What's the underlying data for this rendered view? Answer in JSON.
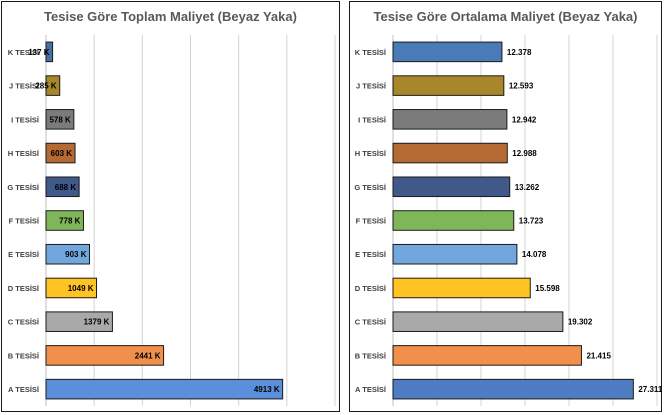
{
  "chart_data": [
    {
      "type": "bar",
      "orientation": "horizontal",
      "title": "Tesise Göre Toplam Maliyet (Beyaz Yaka)",
      "categories": [
        "K TESİSİ",
        "J TESİSİ",
        "I TESİSİ",
        "H TESİSİ",
        "G TESİSİ",
        "F TESİSİ",
        "E TESİSİ",
        "D TESİSİ",
        "C TESİSİ",
        "B TESİSİ",
        "A TESİSİ"
      ],
      "values": [
        137,
        285,
        578,
        603,
        688,
        778,
        903,
        1049,
        1379,
        2441,
        4913
      ],
      "data_labels": [
        "137 K",
        "285 K",
        "578 K",
        "603 K",
        "688 K",
        "778 K",
        "903 K",
        "1049 K",
        "1379 K",
        "2441 K",
        "4913 K"
      ],
      "label_position": "inside-end",
      "xlim": [
        0,
        6000
      ],
      "grid": true,
      "colors": [
        "#4a6fa5",
        "#a8872a",
        "#7b7b7b",
        "#b56a33",
        "#3f5a8a",
        "#7fb65a",
        "#72a7de",
        "#ffc424",
        "#a9a9a9",
        "#f0904b",
        "#5b8fdc"
      ]
    },
    {
      "type": "bar",
      "orientation": "horizontal",
      "title": "Tesise Göre Ortalama Maliyet (Beyaz Yaka)",
      "categories": [
        "K TESİSİ",
        "J TESİSİ",
        "I TESİSİ",
        "H TESİSİ",
        "G TESİSİ",
        "F TESİSİ",
        "E TESİSİ",
        "D TESİSİ",
        "C TESİSİ",
        "B TESİSİ",
        "A TESİSİ"
      ],
      "values": [
        12378,
        12593,
        12942,
        12988,
        13262,
        13723,
        14078,
        15598,
        19302,
        21415,
        27311
      ],
      "data_labels": [
        "12.378",
        "12.593",
        "12.942",
        "12.988",
        "13.262",
        "13.723",
        "14.078",
        "15.598",
        "19.302",
        "21.415",
        "27.311"
      ],
      "label_position": "outside-end",
      "xlim": [
        0,
        30000
      ],
      "grid": true,
      "colors": [
        "#4a7ab8",
        "#a8872a",
        "#7b7b7b",
        "#b56a33",
        "#3f5a8a",
        "#7fb65a",
        "#72a7de",
        "#ffc424",
        "#a9a9a9",
        "#f0904b",
        "#4f7dc4"
      ]
    }
  ]
}
